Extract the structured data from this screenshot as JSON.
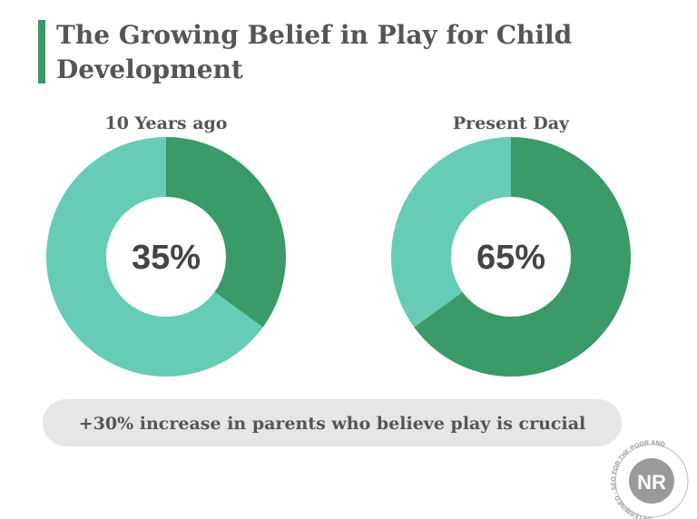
{
  "title": "The Growing Belief in Play for Child Development",
  "chart_data": [
    {
      "type": "donut",
      "title": "10 Years ago",
      "values": [
        35,
        65
      ],
      "value_labels": [
        "35%",
        null
      ],
      "colors": [
        "#3a9a68",
        "#66ccb6"
      ]
    },
    {
      "type": "donut",
      "title": "Present Day",
      "values": [
        65,
        35
      ],
      "value_labels": [
        "65%",
        null
      ],
      "colors": [
        "#3a9a68",
        "#66ccb6"
      ]
    }
  ],
  "note": "+30% increase in parents who believe play is crucial",
  "logo": {
    "initials": "NR",
    "ring_text": "DETERMINED · SEO FOR THE POOR AND"
  }
}
